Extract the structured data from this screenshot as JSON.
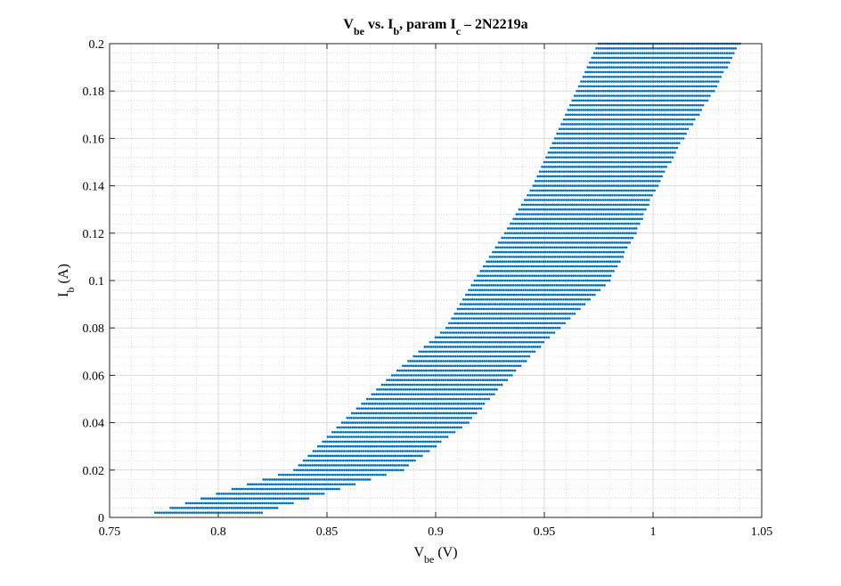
{
  "chart_data": {
    "type": "scatter",
    "title": {
      "main": "V",
      "sub1": "be",
      "mid1": " vs. I",
      "sub2": "b",
      "mid2": ", param I",
      "sub3": "c",
      "tail": " – 2N2219a"
    },
    "xlabel": {
      "main": "V",
      "sub": "be",
      "tail": " (V)"
    },
    "ylabel": {
      "main": "I",
      "sub": "b",
      "tail": " (A)"
    },
    "xlim": [
      0.75,
      1.05
    ],
    "ylim": [
      0,
      0.2
    ],
    "xticks": [
      "0.75",
      "0.8",
      "0.85",
      "0.9",
      "0.95",
      "1",
      "1.05"
    ],
    "yticks": [
      "0",
      "0.02",
      "0.04",
      "0.06",
      "0.08",
      "0.1",
      "0.12",
      "0.14",
      "0.16",
      "0.18",
      "0.2"
    ],
    "grid": true,
    "minor_grid": true,
    "marker_color": "#0072BD",
    "series": [
      {
        "x_step": 0.001,
        "band": [
          {
            "ib": 0.002,
            "vbe_min": 0.771,
            "vbe_max": 0.82
          },
          {
            "ib": 0.02,
            "vbe_min": 0.835,
            "vbe_max": 0.885
          },
          {
            "ib": 0.04,
            "vbe_min": 0.857,
            "vbe_max": 0.915
          },
          {
            "ib": 0.06,
            "vbe_min": 0.88,
            "vbe_max": 0.935
          },
          {
            "ib": 0.08,
            "vbe_min": 0.905,
            "vbe_max": 0.957
          },
          {
            "ib": 0.1,
            "vbe_min": 0.918,
            "vbe_max": 0.98
          },
          {
            "ib": 0.12,
            "vbe_min": 0.932,
            "vbe_max": 0.992
          },
          {
            "ib": 0.14,
            "vbe_min": 0.945,
            "vbe_max": 1.002
          },
          {
            "ib": 0.16,
            "vbe_min": 0.955,
            "vbe_max": 1.014
          },
          {
            "ib": 0.18,
            "vbe_min": 0.965,
            "vbe_max": 1.028
          },
          {
            "ib": 0.2,
            "vbe_min": 0.975,
            "vbe_max": 1.04
          }
        ],
        "ib_levels": [
          0.002,
          0.004,
          0.006,
          0.008,
          0.01,
          0.012,
          0.014,
          0.016,
          0.018,
          0.02,
          0.022,
          0.024,
          0.026,
          0.028,
          0.03,
          0.032,
          0.034,
          0.036,
          0.038,
          0.04,
          0.042,
          0.044,
          0.046,
          0.048,
          0.05,
          0.052,
          0.054,
          0.056,
          0.058,
          0.06,
          0.062,
          0.064,
          0.066,
          0.068,
          0.07,
          0.072,
          0.074,
          0.076,
          0.078,
          0.08,
          0.082,
          0.084,
          0.086,
          0.088,
          0.09,
          0.092,
          0.094,
          0.096,
          0.098,
          0.1,
          0.102,
          0.104,
          0.106,
          0.108,
          0.11,
          0.112,
          0.114,
          0.116,
          0.118,
          0.12,
          0.122,
          0.124,
          0.126,
          0.128,
          0.13,
          0.132,
          0.134,
          0.136,
          0.138,
          0.14,
          0.142,
          0.144,
          0.146,
          0.148,
          0.15,
          0.152,
          0.154,
          0.156,
          0.158,
          0.16,
          0.162,
          0.164,
          0.166,
          0.168,
          0.17,
          0.172,
          0.174,
          0.176,
          0.178,
          0.18,
          0.182,
          0.184,
          0.186,
          0.188,
          0.19,
          0.192,
          0.194,
          0.196,
          0.198,
          0.2
        ]
      }
    ]
  }
}
